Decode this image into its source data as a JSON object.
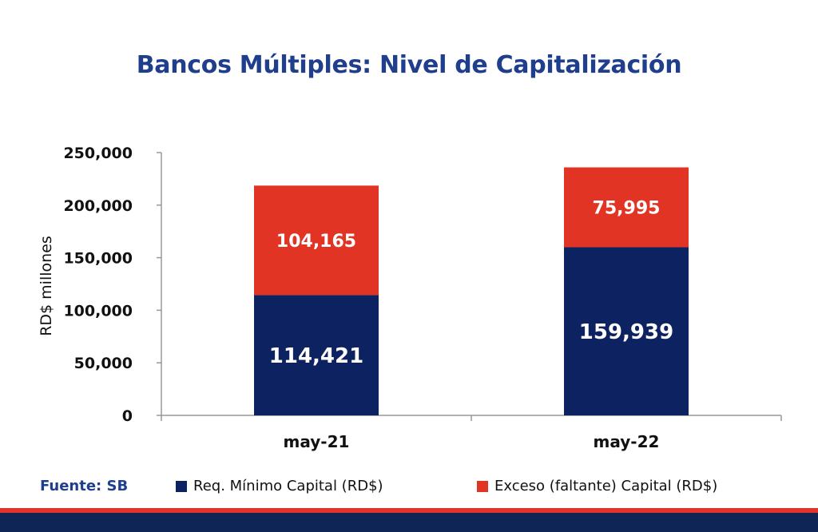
{
  "colors": {
    "series1": "#0d2260",
    "series2": "#e23424",
    "title": "#1f3f8c",
    "footer": "#0f2556"
  },
  "chart_data": {
    "type": "bar",
    "stacked": true,
    "title": "Bancos Múltiples: Nivel de Capitalización",
    "ylabel": "RD$ millones",
    "xlabel": "",
    "categories": [
      "may-21",
      "may-22"
    ],
    "series": [
      {
        "name": "Req. Mínimo Capital (RD$)",
        "values": [
          114421,
          159939
        ],
        "labels": [
          "114,421",
          "159,939"
        ]
      },
      {
        "name": "Exceso (faltante) Capital (RD$)",
        "values": [
          104165,
          75995
        ],
        "labels": [
          "104,165",
          "75,995"
        ]
      }
    ],
    "ylim": [
      0,
      250000
    ],
    "yticks": [
      0,
      50000,
      100000,
      150000,
      200000,
      250000
    ],
    "ytick_labels": [
      "0",
      "50,000",
      "100,000",
      "150,000",
      "200,000",
      "250,000"
    ],
    "grid": false,
    "legend_position": "bottom"
  },
  "source": {
    "label": "Fuente: SB"
  }
}
